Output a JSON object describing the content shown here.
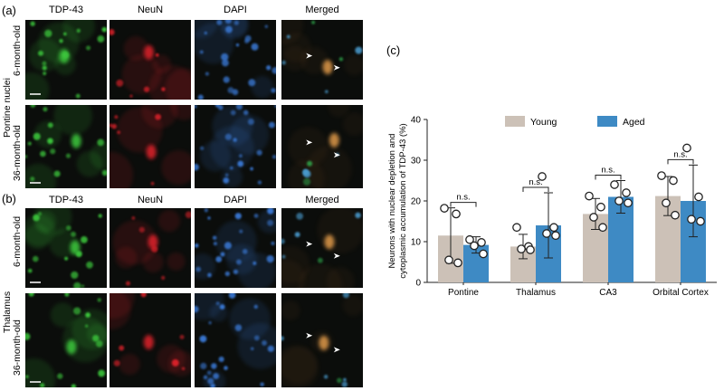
{
  "panels": {
    "a": {
      "letter": "(a)",
      "region": "Pontine nuclei"
    },
    "b": {
      "letter": "(b)",
      "region": "Thalamus"
    },
    "c": {
      "letter": "(c)"
    }
  },
  "columns": [
    "TDP-43",
    "NeuN",
    "DAPI",
    "Merged"
  ],
  "ages": [
    "6-month-old",
    "36-month-old"
  ],
  "channel_colors": {
    "TDP-43": "#3ccb3c",
    "NeuN": "#e0202a",
    "DAPI": "#3a7ad8",
    "Merged": "#e0a050"
  },
  "chart_data": {
    "type": "bar",
    "categories": [
      "Pontine",
      "Thalamus",
      "CA3",
      "Orbital Cortex"
    ],
    "ylabel_line1": "Neurons with nuclear depletion and",
    "ylabel_line2": "cytoplasmic accumulation of TDP-43 (%)",
    "ylim": [
      0,
      40
    ],
    "yticks": [
      "0",
      "10",
      "20",
      "30",
      "40"
    ],
    "series": [
      {
        "name": "Young",
        "color": "#ccc1b7",
        "values": [
          11.5,
          8.8,
          16.8,
          21.2
        ],
        "sd": [
          6.8,
          3.0,
          3.8,
          4.8
        ],
        "points": [
          [
            18.2,
            16.8,
            5.5,
            4.8
          ],
          [
            13.5,
            8.8,
            8.2,
            8.0
          ],
          [
            21.2,
            18.5,
            16.0,
            13.5
          ],
          [
            26.2,
            25.0,
            19.5,
            16.5
          ]
        ]
      },
      {
        "name": "Aged",
        "color": "#3e8ac4",
        "values": [
          9.2,
          14.0,
          21.0,
          20.0
        ],
        "sd": [
          2.0,
          8.0,
          4.0,
          8.8
        ],
        "points": [
          [
            10.5,
            9.8,
            9.0,
            7.0
          ],
          [
            26.0,
            13.5,
            12.0,
            11.5
          ],
          [
            24.0,
            22.0,
            20.0,
            19.5
          ],
          [
            33.0,
            21.0,
            15.5,
            15.0
          ]
        ]
      }
    ],
    "annotations": [
      "n.s.",
      "n.s.",
      "n.s.",
      "n.s."
    ],
    "legend_position": "top"
  }
}
